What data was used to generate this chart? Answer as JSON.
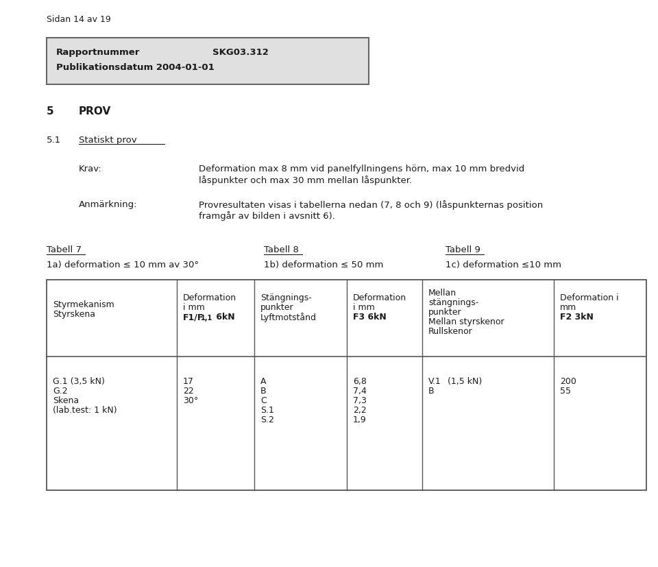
{
  "page_header": "Sidan 14 av 19",
  "report_label1": "Rapportnummer",
  "report_value1": "SKG03.312",
  "report_label2": "Publikationsdatum 2004-01-01",
  "report_bg": "#e0e0e0",
  "report_border": "#666666",
  "section_num": "5",
  "section_title": "PROV",
  "sub_num": "5.1",
  "sub_title": "Statiskt prov",
  "krav_label": "Krav:",
  "krav_line1": "Deformation max 8 mm vid panelfyllningens hörn, max 10 mm bredvid",
  "krav_line2": "låspunkter och max 30 mm mellan låspunkter.",
  "anm_label": "Anmärkning:",
  "anm_line1": "Provresultaten visas i tabellerna nedan (7, 8 och 9) (låspunkternas position",
  "anm_line2": "framgår av bilden i avsnitt 6).",
  "t7_title": "Tabell 7",
  "t8_title": "Tabell 8",
  "t9_title": "Tabell 9",
  "t7_sub": "1a) deformation ≤ 10 mm av 30°",
  "t8_sub": "1b) deformation ≤ 50 mm",
  "t9_sub": "1c) deformation ≤10 mm",
  "th_col0_line1": "Styrmekanism",
  "th_col0_line2": "Styrskena",
  "th_col1_line1": "Deformation",
  "th_col1_line2": "i mm",
  "th_col1_bold": "F1/F",
  "th_col1_sub": "1,1",
  "th_col1_bold2": " 6kN",
  "th_col2_line1": "Stängnings-",
  "th_col2_line2": "punkter",
  "th_col2_line3": "Lyftmotstånd",
  "th_col3_line1": "Deformation",
  "th_col3_line2": "i mm",
  "th_col3_bold": "F3 6kN",
  "th_col4_line1": "Mellan",
  "th_col4_line2": "stängnings-",
  "th_col4_line3": "punkter",
  "th_col4_line4": "Mellan styrskenor",
  "th_col4_line5": "Rullskenor",
  "th_col5_line1": "Deformation i",
  "th_col5_line2": "mm",
  "th_col5_bold": "F2 3kN",
  "td_col0": [
    "G.1 (3,5 kN)",
    "G.2",
    "Skena",
    "(lab.test: 1 kN)"
  ],
  "td_col1": [
    "17",
    "22",
    "30°"
  ],
  "td_col2": [
    "A",
    "B",
    "C",
    "S.1",
    "S.2"
  ],
  "td_col3": [
    "6,8",
    "7,4",
    "7,3",
    "2,2",
    "1,9"
  ],
  "td_col4_v1": "V.1",
  "td_col4_kn": "(1,5 kN)",
  "td_col4_b": "B",
  "td_col5": [
    "200",
    "55"
  ],
  "font_color": "#1a1a1a",
  "table_border": "#555555",
  "bg_white": "#ffffff"
}
